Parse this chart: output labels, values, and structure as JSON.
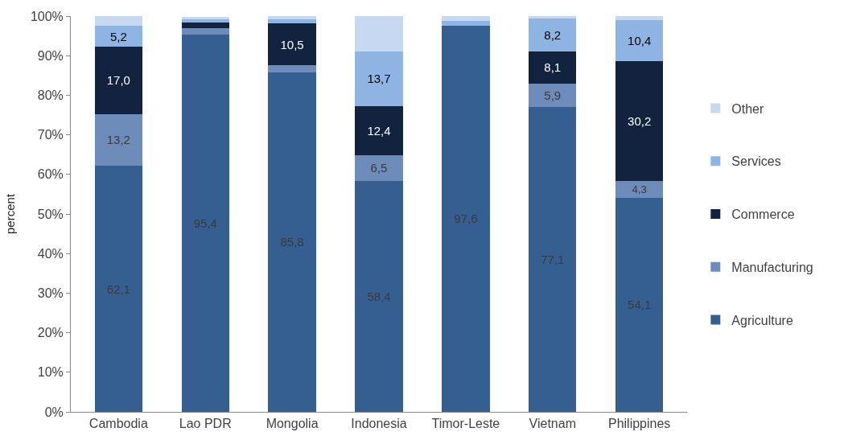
{
  "chart_data": {
    "type": "bar",
    "stacked": true,
    "ylabel": "percent",
    "categories": [
      "Cambodia",
      "Lao PDR",
      "Mongolia",
      "Indonesia",
      "Timor-Leste",
      "Vietnam",
      "Philippines"
    ],
    "ylim": [
      0,
      100
    ],
    "yticks": [
      {
        "value": 0,
        "label": "0%"
      },
      {
        "value": 10,
        "label": "10%"
      },
      {
        "value": 20,
        "label": "20%"
      },
      {
        "value": 30,
        "label": "30%"
      },
      {
        "value": 40,
        "label": "40%"
      },
      {
        "value": 50,
        "label": "50%"
      },
      {
        "value": 60,
        "label": "60%"
      },
      {
        "value": 70,
        "label": "70%"
      },
      {
        "value": 80,
        "label": "80%"
      },
      {
        "value": 90,
        "label": "90%"
      },
      {
        "value": 100,
        "label": "100%"
      }
    ],
    "legend": "right",
    "series": [
      {
        "name": "Agriculture",
        "color": "#365f91",
        "values": [
          62.1,
          95.4,
          85.8,
          58.4,
          97.6,
          77.1,
          54.1
        ],
        "value_labels": [
          "62,1",
          "95,4",
          "85,8",
          "58,4",
          "97,6",
          "77,1",
          "54,1"
        ]
      },
      {
        "name": "Manufacturing",
        "color": "#6d8cba",
        "values": [
          13.2,
          1.6,
          1.8,
          6.5,
          null,
          5.9,
          4.3
        ],
        "value_labels": [
          "13,2",
          null,
          null,
          "6,5",
          null,
          "5,9",
          "4,3"
        ]
      },
      {
        "name": "Commerce",
        "color": "#12233f",
        "values": [
          17.0,
          1.4,
          10.5,
          12.4,
          null,
          8.1,
          30.2
        ],
        "value_labels": [
          "17,0",
          null,
          "10,5",
          "12,4",
          null,
          "8,1",
          "30,2"
        ]
      },
      {
        "name": "Services",
        "color": "#8eb4e3",
        "values": [
          5.2,
          0.8,
          1.0,
          13.7,
          1.1,
          8.2,
          10.4
        ],
        "value_labels": [
          "5,2",
          null,
          null,
          "13,7",
          null,
          "8,2",
          "10,4"
        ]
      },
      {
        "name": "Other",
        "color": "#c6d9f1",
        "values": [
          2.5,
          0.6,
          0.9,
          9.0,
          1.3,
          0.7,
          1.0
        ],
        "value_labels": [
          null,
          null,
          null,
          null,
          null,
          null,
          null
        ]
      }
    ]
  }
}
